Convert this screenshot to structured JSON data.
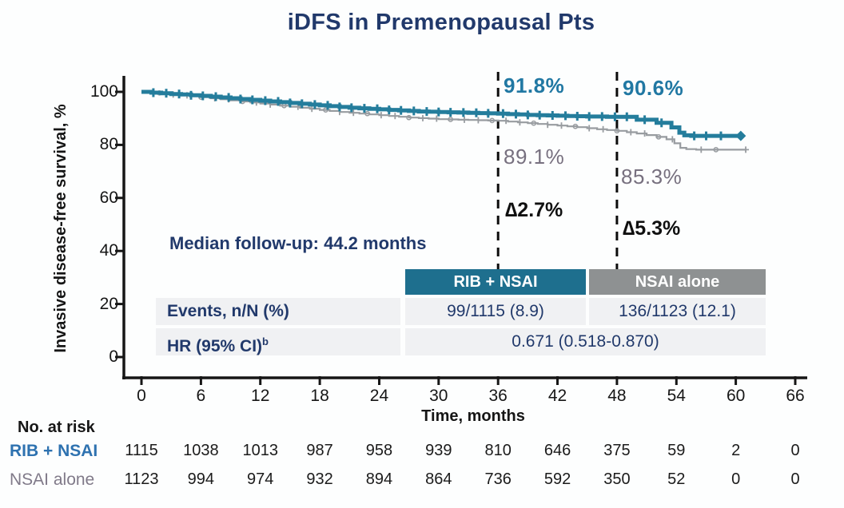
{
  "title": "iDFS in Premenopausal Pts",
  "chart_data": {
    "type": "line",
    "subtype": "kaplan-meier-survival",
    "title": "iDFS in Premenopausal Pts",
    "xlabel": "Time, months",
    "ylabel": "Invasive disease-free survival, %",
    "xlim": [
      0,
      66
    ],
    "ylim": [
      0,
      100
    ],
    "x_ticks": [
      0,
      6,
      12,
      18,
      24,
      30,
      36,
      42,
      48,
      54,
      60,
      66
    ],
    "y_ticks": [
      0,
      20,
      40,
      60,
      80,
      100
    ],
    "grid": false,
    "legend_position": "none",
    "dashed_landmark_months": [
      36,
      48
    ],
    "landmark_values": [
      {
        "month": 36,
        "rib_nsai_pct": 91.8,
        "nsai_alone_pct": 89.1,
        "delta_pct": 2.7
      },
      {
        "month": 48,
        "rib_nsai_pct": 90.6,
        "nsai_alone_pct": 85.3,
        "delta_pct": 5.3
      }
    ],
    "series": [
      {
        "name": "RIB + NSAI",
        "color": "#247d9c",
        "end_marker": "diamond",
        "points": [
          [
            0,
            100
          ],
          [
            1,
            99.7
          ],
          [
            2,
            99.5
          ],
          [
            3,
            99.2
          ],
          [
            4,
            99.0
          ],
          [
            5,
            98.7
          ],
          [
            6,
            98.5
          ],
          [
            7,
            98.2
          ],
          [
            8,
            97.9
          ],
          [
            9,
            97.6
          ],
          [
            10,
            97.3
          ],
          [
            11,
            97.0
          ],
          [
            12,
            96.7
          ],
          [
            13,
            96.4
          ],
          [
            14,
            96.1
          ],
          [
            15,
            95.8
          ],
          [
            16,
            95.5
          ],
          [
            17,
            95.2
          ],
          [
            18,
            94.9
          ],
          [
            19,
            94.6
          ],
          [
            20,
            94.3
          ],
          [
            21,
            94.0
          ],
          [
            22,
            93.8
          ],
          [
            23,
            93.6
          ],
          [
            24,
            93.4
          ],
          [
            25,
            93.2
          ],
          [
            26,
            93.0
          ],
          [
            27,
            92.8
          ],
          [
            28,
            92.6
          ],
          [
            29,
            92.5
          ],
          [
            30,
            92.4
          ],
          [
            31,
            92.3
          ],
          [
            32,
            92.2
          ],
          [
            33,
            92.1
          ],
          [
            34,
            92.0
          ],
          [
            35,
            91.9
          ],
          [
            36,
            91.8
          ],
          [
            37,
            91.6
          ],
          [
            38,
            91.5
          ],
          [
            39,
            91.3
          ],
          [
            40,
            91.2
          ],
          [
            41,
            91.1
          ],
          [
            42,
            91.0
          ],
          [
            43,
            90.9
          ],
          [
            44,
            90.8
          ],
          [
            45,
            90.7
          ],
          [
            46,
            90.7
          ],
          [
            47,
            90.6
          ],
          [
            48,
            90.6
          ],
          [
            50,
            89.5
          ],
          [
            52,
            88.3
          ],
          [
            53.5,
            86.6
          ],
          [
            54.3,
            84.6
          ],
          [
            54.8,
            83.6
          ],
          [
            55.5,
            83.4
          ],
          [
            60.5,
            83.4
          ]
        ],
        "censor_times": [
          1.2,
          2.5,
          3.8,
          5,
          6.2,
          7.5,
          8.8,
          10,
          11.2,
          12.5,
          13.8,
          15,
          16.2,
          17.5,
          18.8,
          20,
          21.2,
          22.5,
          23.8,
          25,
          26.2,
          27.5,
          28.8,
          30,
          31.2,
          32.5,
          33.8,
          35,
          36.5,
          37.8,
          39,
          40.2,
          41.5,
          42.8,
          44,
          45.2,
          46.5,
          47.8,
          49,
          50.8,
          52.5,
          55.8,
          57,
          58.5
        ]
      },
      {
        "name": "NSAI alone",
        "color": "#989ca0",
        "end_marker": "cross",
        "points": [
          [
            0,
            100
          ],
          [
            1,
            99.6
          ],
          [
            2,
            99.3
          ],
          [
            3,
            99.0
          ],
          [
            4,
            98.7
          ],
          [
            5,
            98.4
          ],
          [
            6,
            98.0
          ],
          [
            7,
            97.6
          ],
          [
            8,
            97.2
          ],
          [
            9,
            96.8
          ],
          [
            10,
            96.4
          ],
          [
            11,
            96.0
          ],
          [
            12,
            95.6
          ],
          [
            13,
            95.2
          ],
          [
            14,
            94.8
          ],
          [
            15,
            94.4
          ],
          [
            16,
            94.0
          ],
          [
            17,
            93.6
          ],
          [
            18,
            93.2
          ],
          [
            19,
            92.8
          ],
          [
            20,
            92.4
          ],
          [
            21,
            92.1
          ],
          [
            22,
            91.8
          ],
          [
            23,
            91.5
          ],
          [
            24,
            91.2
          ],
          [
            25,
            90.9
          ],
          [
            26,
            90.6
          ],
          [
            27,
            90.3
          ],
          [
            28,
            90.1
          ],
          [
            29,
            89.9
          ],
          [
            30,
            89.7
          ],
          [
            31,
            89.6
          ],
          [
            32,
            89.5
          ],
          [
            33,
            89.4
          ],
          [
            34,
            89.3
          ],
          [
            35,
            89.2
          ],
          [
            36,
            89.1
          ],
          [
            37,
            88.8
          ],
          [
            38,
            88.5
          ],
          [
            39,
            88.2
          ],
          [
            40,
            87.9
          ],
          [
            41,
            87.6
          ],
          [
            42,
            87.3
          ],
          [
            43,
            87.0
          ],
          [
            44,
            86.7
          ],
          [
            45,
            86.3
          ],
          [
            46,
            85.9
          ],
          [
            47,
            85.6
          ],
          [
            48,
            85.3
          ],
          [
            49,
            84.8
          ],
          [
            50,
            84.3
          ],
          [
            51,
            83.7
          ],
          [
            52,
            83.0
          ],
          [
            53,
            82.1
          ],
          [
            53.8,
            80.6
          ],
          [
            54.4,
            78.9
          ],
          [
            55,
            78.4
          ],
          [
            56,
            78.2
          ],
          [
            61,
            78.2
          ]
        ],
        "censor_times": [
          1.8,
          3.2,
          4.6,
          6,
          7.4,
          8.8,
          10.2,
          11.6,
          13,
          14.4,
          15.8,
          17.2,
          18.6,
          20,
          21.4,
          22.8,
          24.2,
          25.6,
          27,
          28.4,
          29.8,
          31.2,
          32.6,
          34,
          35.4,
          36.8,
          38.2,
          39.6,
          41,
          42.4,
          43.8,
          45.2,
          46.6,
          48,
          49.4,
          50.8,
          52.2,
          53.6,
          56.5,
          58
        ]
      }
    ]
  },
  "overlays": {
    "median_followup": "Median follow-up: 44.2 months",
    "pct_36_rib": "91.8%",
    "pct_36_nsai": "89.1%",
    "pct_48_rib": "90.6%",
    "pct_48_nsai": "85.3%",
    "delta_36": "∆2.7%",
    "delta_48": "∆5.3%"
  },
  "summary_table": {
    "column_headers": [
      "RIB + NSAI",
      "NSAI alone"
    ],
    "rows": [
      {
        "label": "Events, n/N (%)",
        "values": [
          "99/1115 (8.9)",
          "136/1123 (12.1)"
        ],
        "merged": false
      },
      {
        "label": "HR (95% CI)",
        "label_superscript": "b",
        "values": [
          "0.671 (0.518-0.870)"
        ],
        "merged": true
      }
    ]
  },
  "at_risk": {
    "heading": "No. at risk",
    "rows": [
      {
        "label": "RIB + NSAI",
        "counts": [
          1115,
          1038,
          1013,
          987,
          958,
          939,
          810,
          646,
          375,
          59,
          2,
          0
        ]
      },
      {
        "label": "NSAI alone",
        "counts": [
          1123,
          994,
          974,
          932,
          894,
          864,
          736,
          592,
          350,
          52,
          0,
          0
        ]
      }
    ]
  },
  "colors": {
    "navy": "#21396b",
    "teal_curve": "#247d9c",
    "teal_header_bg": "#1e6f8e",
    "teal_annotation_text": "#2178a3",
    "gray_curve": "#989ca0",
    "gray_header_bg": "#8e9192",
    "gray_annotation_text": "#77707f",
    "risk_rib_label": "#2e72b0",
    "risk_nsai_label": "#807a89",
    "table_row_bg": "#f0f1f3",
    "axis": "#161616"
  }
}
